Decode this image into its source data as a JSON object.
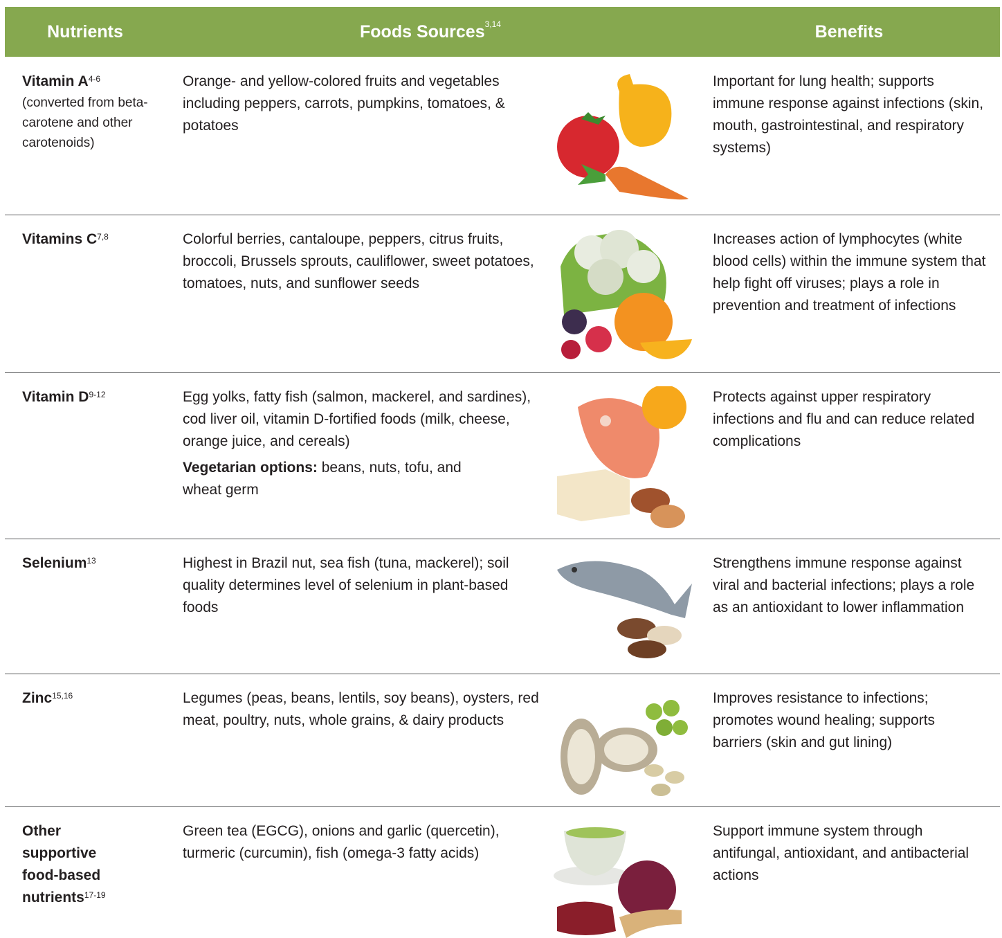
{
  "header": {
    "nutrients": "Nutrients",
    "foods": "Foods Sources",
    "foods_refs": "3,14",
    "benefits": "Benefits"
  },
  "rows": [
    {
      "nutrient": "Vitamin A",
      "refs": "4-6",
      "note": "(converted from beta-carotene and other carotenoids)",
      "foods": "Orange- and yellow-colored fruits and vegetables including peppers, carrots, pumpkins, tomatoes, & potatoes",
      "benefits": "Important for lung health; supports immune response against infections (skin, mouth, gastrointestinal, and respiratory systems)"
    },
    {
      "nutrient": "Vitamins C",
      "refs": "7,8",
      "foods": "Colorful berries, cantaloupe, peppers, citrus fruits, broccoli, Brussels sprouts, cauliflower, sweet potatoes, tomatoes, nuts, and sunflower seeds",
      "benefits": "Increases action of lymphocytes (white blood cells) within the immune system that help fight off viruses; plays a role in prevention and treatment of infections"
    },
    {
      "nutrient": "Vitamin D",
      "refs": "9-12",
      "foods": "Egg yolks, fatty fish (salmon, mackerel, and sardines), cod liver oil, vitamin D-fortified foods (milk, cheese, orange juice, and cereals)",
      "extra_label": "Vegetarian options:",
      "extra": " beans, nuts, tofu, and wheat germ",
      "benefits": "Protects against upper respiratory infections and flu and can reduce related complications"
    },
    {
      "nutrient": "Selenium",
      "refs": "13",
      "foods": "Highest in Brazil nut, sea fish (tuna, mackerel); soil quality determines level of selenium in plant-based foods",
      "benefits": "Strengthens immune response against viral and bacterial infections; plays a role as an antioxidant to lower inflammation"
    },
    {
      "nutrient": "Zinc",
      "refs": "15,16",
      "foods": "Legumes (peas, beans, lentils, soy beans), oysters, red meat, poultry, nuts, whole grains, & dairy products",
      "benefits": "Improves resistance to infections; promotes wound healing; supports barriers (skin and gut lining)"
    },
    {
      "nutrient": "Other supportive food-based nutrients",
      "refs": "17-19",
      "foods": "Green tea (EGCG), onions and garlic (quercetin), turmeric (curcumin), fish (omega-3 fatty acids)",
      "benefits": "Support immune system through antifungal, antioxidant, and antibacterial actions"
    }
  ]
}
